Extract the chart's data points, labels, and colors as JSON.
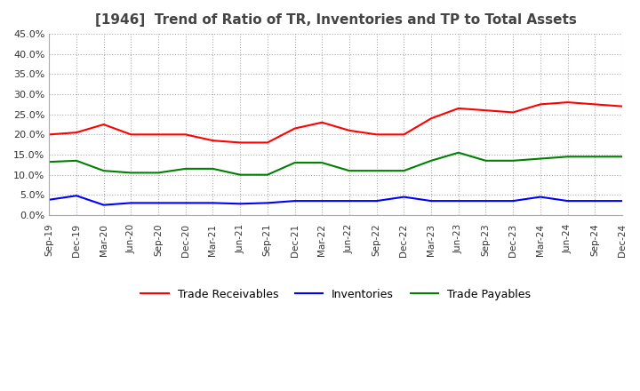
{
  "title": "[1946]  Trend of Ratio of TR, Inventories and TP to Total Assets",
  "x_labels": [
    "Sep-19",
    "Dec-19",
    "Mar-20",
    "Jun-20",
    "Sep-20",
    "Dec-20",
    "Mar-21",
    "Jun-21",
    "Sep-21",
    "Dec-21",
    "Mar-22",
    "Jun-22",
    "Sep-22",
    "Dec-22",
    "Mar-23",
    "Jun-23",
    "Sep-23",
    "Dec-23",
    "Mar-24",
    "Jun-24",
    "Sep-24",
    "Dec-24"
  ],
  "trade_receivables": [
    20.0,
    20.5,
    22.5,
    20.0,
    20.0,
    20.0,
    18.5,
    18.0,
    18.0,
    21.5,
    23.0,
    21.0,
    20.0,
    20.0,
    24.0,
    26.5,
    26.0,
    25.5,
    27.5,
    28.0,
    27.5,
    27.0
  ],
  "inventories": [
    3.8,
    4.8,
    2.5,
    3.0,
    3.0,
    3.0,
    3.0,
    2.8,
    3.0,
    3.5,
    3.5,
    3.5,
    3.5,
    4.5,
    3.5,
    3.5,
    3.5,
    3.5,
    4.5,
    3.5,
    3.5,
    3.5
  ],
  "trade_payables": [
    13.2,
    13.5,
    11.0,
    10.5,
    10.5,
    11.5,
    11.5,
    10.0,
    10.0,
    13.0,
    13.0,
    11.0,
    11.0,
    11.0,
    13.5,
    15.5,
    13.5,
    13.5,
    14.0,
    14.5,
    14.5,
    14.5
  ],
  "tr_color": "#ff0000",
  "inv_color": "#0000ff",
  "tp_color": "#008000",
  "ylim": [
    0.0,
    45.0
  ],
  "ytick_step": 5.0,
  "background_color": "#ffffff",
  "grid_color": "#aaaaaa",
  "title_fontsize": 11,
  "legend_labels": [
    "Trade Receivables",
    "Inventories",
    "Trade Payables"
  ]
}
